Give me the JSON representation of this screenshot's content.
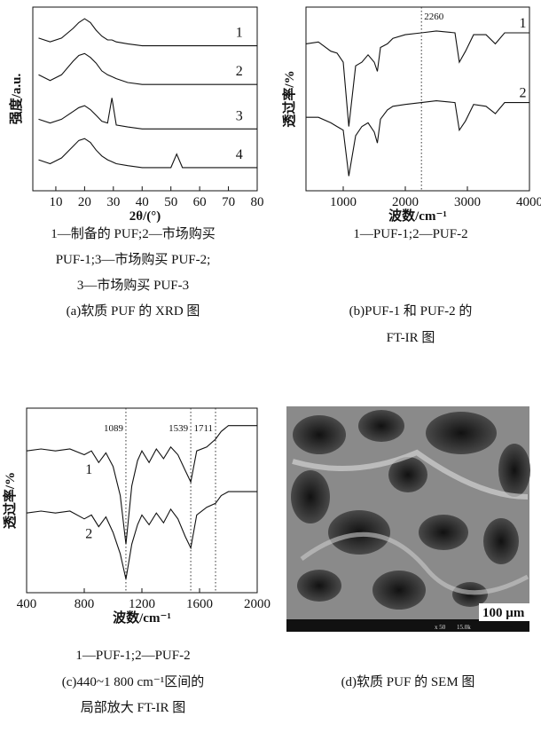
{
  "chart_data": [
    {
      "type": "line",
      "ylabel": "强度/a.u.",
      "xlabel": "2θ/(°)",
      "x": [
        4,
        8,
        12,
        16,
        18,
        20,
        22,
        24,
        26,
        28,
        29.5,
        31,
        35,
        40,
        45,
        50,
        52,
        54,
        60,
        65,
        70,
        75,
        80
      ],
      "xlim": [
        2,
        80
      ],
      "xticks": [
        10,
        20,
        30,
        40,
        50,
        60,
        70,
        80
      ],
      "ylim": [
        1,
        10.5
      ],
      "color": "#111111",
      "series": [
        {
          "name": "1",
          "values": [
            8.9,
            8.7,
            8.9,
            9.4,
            9.7,
            9.9,
            9.7,
            9.3,
            9.0,
            8.8,
            8.8,
            8.7,
            8.6,
            8.5,
            8.5,
            8.5,
            8.5,
            8.5,
            8.5,
            8.5,
            8.5,
            8.5,
            8.5
          ]
        },
        {
          "name": "2",
          "values": [
            7.0,
            6.7,
            7.0,
            7.7,
            8.0,
            8.1,
            7.9,
            7.6,
            7.2,
            7.0,
            6.9,
            6.8,
            6.6,
            6.5,
            6.5,
            6.5,
            6.5,
            6.5,
            6.5,
            6.5,
            6.5,
            6.5,
            6.5
          ]
        },
        {
          "name": "3",
          "values": [
            4.7,
            4.5,
            4.7,
            5.1,
            5.3,
            5.4,
            5.2,
            4.9,
            4.6,
            4.5,
            5.8,
            4.4,
            4.3,
            4.2,
            4.2,
            4.2,
            4.2,
            4.2,
            4.2,
            4.2,
            4.2,
            4.2,
            4.2
          ]
        },
        {
          "name": "4",
          "values": [
            2.6,
            2.4,
            2.7,
            3.3,
            3.6,
            3.7,
            3.5,
            3.1,
            2.8,
            2.6,
            2.5,
            2.4,
            2.3,
            2.2,
            2.2,
            2.2,
            2.9,
            2.2,
            2.2,
            2.2,
            2.2,
            2.2,
            2.2
          ]
        }
      ]
    },
    {
      "type": "line",
      "ylabel": "透过率/%",
      "xlabel": "波数/cm⁻¹",
      "x": [
        400,
        600,
        800,
        900,
        1000,
        1090,
        1200,
        1300,
        1400,
        1500,
        1550,
        1600,
        1711,
        1800,
        2000,
        2260,
        2500,
        2800,
        2870,
        2970,
        3100,
        3300,
        3450,
        3600,
        4000
      ],
      "xlim": [
        400,
        4000
      ],
      "xticks": [
        1000,
        2000,
        3000,
        4000
      ],
      "ylim": [
        0,
        10
      ],
      "color": "#111111",
      "annotations": [
        {
          "text": "2260",
          "x": 2260
        }
      ],
      "series": [
        {
          "name": "1",
          "values": [
            8.0,
            8.1,
            7.6,
            7.5,
            7.0,
            3.5,
            6.8,
            7.0,
            7.4,
            7.0,
            6.5,
            7.8,
            8.0,
            8.3,
            8.5,
            8.6,
            8.7,
            8.6,
            7.0,
            7.6,
            8.5,
            8.5,
            8.0,
            8.6,
            8.6
          ]
        },
        {
          "name": "2",
          "values": [
            4.0,
            4.0,
            3.7,
            3.5,
            3.3,
            0.8,
            3.0,
            3.5,
            3.7,
            3.2,
            2.6,
            3.9,
            4.4,
            4.6,
            4.7,
            4.8,
            4.9,
            4.8,
            3.3,
            3.8,
            4.7,
            4.6,
            4.2,
            4.8,
            4.8
          ]
        }
      ]
    },
    {
      "type": "line",
      "ylabel": "透过率/%",
      "xlabel": "波数/cm⁻¹",
      "x": [
        400,
        500,
        600,
        700,
        800,
        850,
        900,
        950,
        1000,
        1050,
        1089,
        1130,
        1170,
        1200,
        1250,
        1300,
        1350,
        1400,
        1450,
        1500,
        1539,
        1580,
        1650,
        1711,
        1750,
        1800,
        1900,
        2000
      ],
      "xlim": [
        400,
        2000
      ],
      "xticks": [
        400,
        800,
        1200,
        1600,
        2000
      ],
      "ylim": [
        -0.5,
        9
      ],
      "color": "#111111",
      "annotations": [
        {
          "text": "1089",
          "x": 1089
        },
        {
          "text": "1539",
          "x": 1539
        },
        {
          "text": "1711",
          "x": 1711
        }
      ],
      "series": [
        {
          "name": "1",
          "values": [
            6.8,
            6.9,
            6.8,
            6.9,
            6.6,
            6.8,
            6.2,
            6.7,
            6.0,
            4.5,
            2.0,
            5.0,
            6.3,
            6.8,
            6.2,
            6.9,
            6.4,
            7.0,
            6.6,
            5.8,
            5.2,
            6.8,
            7.0,
            7.4,
            7.8,
            8.1,
            8.1,
            8.1
          ]
        },
        {
          "name": "2",
          "values": [
            3.6,
            3.7,
            3.6,
            3.7,
            3.3,
            3.5,
            2.9,
            3.4,
            2.6,
            1.5,
            0.2,
            2.0,
            3.0,
            3.5,
            3.0,
            3.6,
            3.1,
            3.8,
            3.3,
            2.4,
            1.8,
            3.5,
            3.9,
            4.1,
            4.5,
            4.7,
            4.7,
            4.7
          ]
        }
      ]
    }
  ],
  "captions": {
    "a": [
      "1—制备的 PUF;2—市场购买",
      "PUF-1;3—市场购买 PUF-2;",
      "3—市场购买 PUF-3",
      "(a)软质 PUF 的 XRD 图"
    ],
    "b": [
      "1—PUF-1;2—PUF-2",
      "(b)PUF-1 和 PUF-2 的",
      "FT-IR 图"
    ],
    "c": [
      "1—PUF-1;2—PUF-2",
      "(c)440~1 800 cm⁻¹区间的",
      "局部放大 FT-IR 图"
    ],
    "d": [
      "(d)软质 PUF 的 SEM 图"
    ]
  },
  "image": {
    "scale_bar": "100 µm",
    "info": [
      "x 50",
      "15.0k"
    ]
  }
}
